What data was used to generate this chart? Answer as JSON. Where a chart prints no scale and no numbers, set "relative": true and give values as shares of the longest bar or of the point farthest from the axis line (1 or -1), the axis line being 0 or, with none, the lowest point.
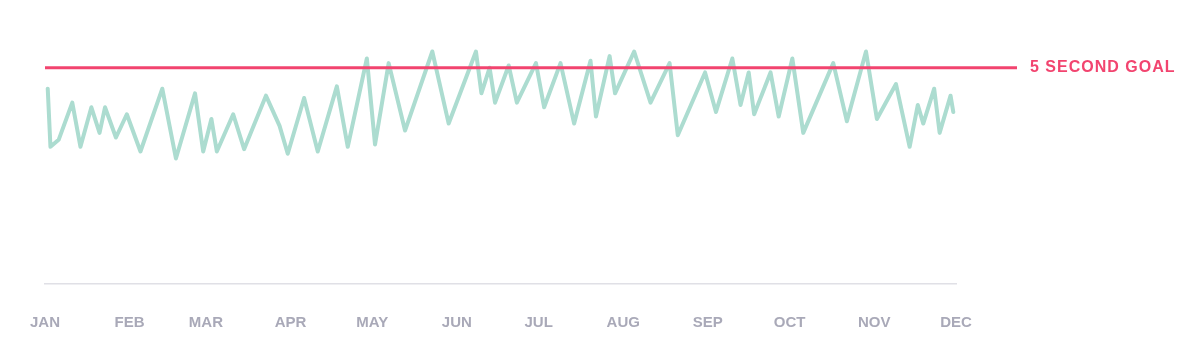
{
  "chart_data": {
    "type": "line",
    "relative": true,
    "x": [
      "--01-02",
      "--01-03",
      "--01-06",
      "--01-11",
      "--01-14",
      "--01-18",
      "--01-21",
      "--01-23",
      "--01-27",
      "--01-31",
      "--02-05",
      "--02-13",
      "--02-18",
      "--02-25",
      "--02-28",
      "--03-03",
      "--03-05",
      "--03-11",
      "--03-15",
      "--03-23",
      "--03-28",
      "--03-31",
      "--04-06",
      "--04-11",
      "--04-18",
      "--04-22",
      "--04-29",
      "--05-02",
      "--05-07",
      "--05-13",
      "--05-23",
      "--05-29",
      "--06-08",
      "--06-10",
      "--06-13",
      "--06-15",
      "--06-20",
      "--06-23",
      "--06-30",
      "--07-03",
      "--07-09",
      "--07-14",
      "--07-20",
      "--07-22",
      "--07-27",
      "--07-29",
      "--08-05",
      "--08-11",
      "--08-18",
      "--08-21",
      "--08-31",
      "--09-04",
      "--09-10",
      "--09-13",
      "--09-16",
      "--09-18",
      "--09-24",
      "--09-27",
      "--10-02",
      "--10-06",
      "--10-17",
      "--10-22",
      "--10-29",
      "--11-02",
      "--11-09",
      "--11-14",
      "--11-17",
      "--11-19",
      "--11-23",
      "--11-25",
      "--11-29",
      "--11-30"
    ],
    "series": [
      {
        "color": "#acdcd0",
        "values": [
          0.84,
          0.59,
          0.62,
          0.78,
          0.59,
          0.76,
          0.65,
          0.76,
          0.63,
          0.73,
          0.57,
          0.84,
          0.54,
          0.82,
          0.57,
          0.71,
          0.57,
          0.73,
          0.58,
          0.81,
          0.68,
          0.56,
          0.8,
          0.57,
          0.85,
          0.59,
          0.97,
          0.6,
          0.95,
          0.66,
          1.0,
          0.69,
          1.0,
          0.82,
          0.93,
          0.78,
          0.94,
          0.78,
          0.95,
          0.76,
          0.95,
          0.69,
          0.96,
          0.72,
          0.98,
          0.82,
          1.0,
          0.78,
          0.95,
          0.64,
          0.91,
          0.74,
          0.97,
          0.77,
          0.91,
          0.73,
          0.91,
          0.72,
          0.97,
          0.65,
          0.95,
          0.7,
          1.0,
          0.71,
          0.86,
          0.59,
          0.77,
          0.69,
          0.84,
          0.65,
          0.81,
          0.74
        ]
      }
    ],
    "xlim": [
      "--01-01",
      "--12-01"
    ],
    "xticks": [
      {
        "value": "--01-01",
        "label": "JAN"
      },
      {
        "value": "--02-01",
        "label": "FEB"
      },
      {
        "value": "--03-01",
        "label": "MAR"
      },
      {
        "value": "--04-01",
        "label": "APR"
      },
      {
        "value": "--05-01",
        "label": "MAY"
      },
      {
        "value": "--06-01",
        "label": "JUN"
      },
      {
        "value": "--07-01",
        "label": "JUL"
      },
      {
        "value": "--08-01",
        "label": "AUG"
      },
      {
        "value": "--09-01",
        "label": "SEP"
      },
      {
        "value": "--10-01",
        "label": "OCT"
      },
      {
        "value": "--11-01",
        "label": "NOV"
      },
      {
        "value": "--12-01",
        "label": "DEC"
      }
    ],
    "ref_lines": [
      {
        "axis": "y",
        "value": 0.93,
        "label": "5 SECOND GOAL",
        "color": "#f2446f",
        "line_style": "solid"
      }
    ],
    "legend": false,
    "tick_labels": "x",
    "marker": "none",
    "line_style": "solid"
  }
}
